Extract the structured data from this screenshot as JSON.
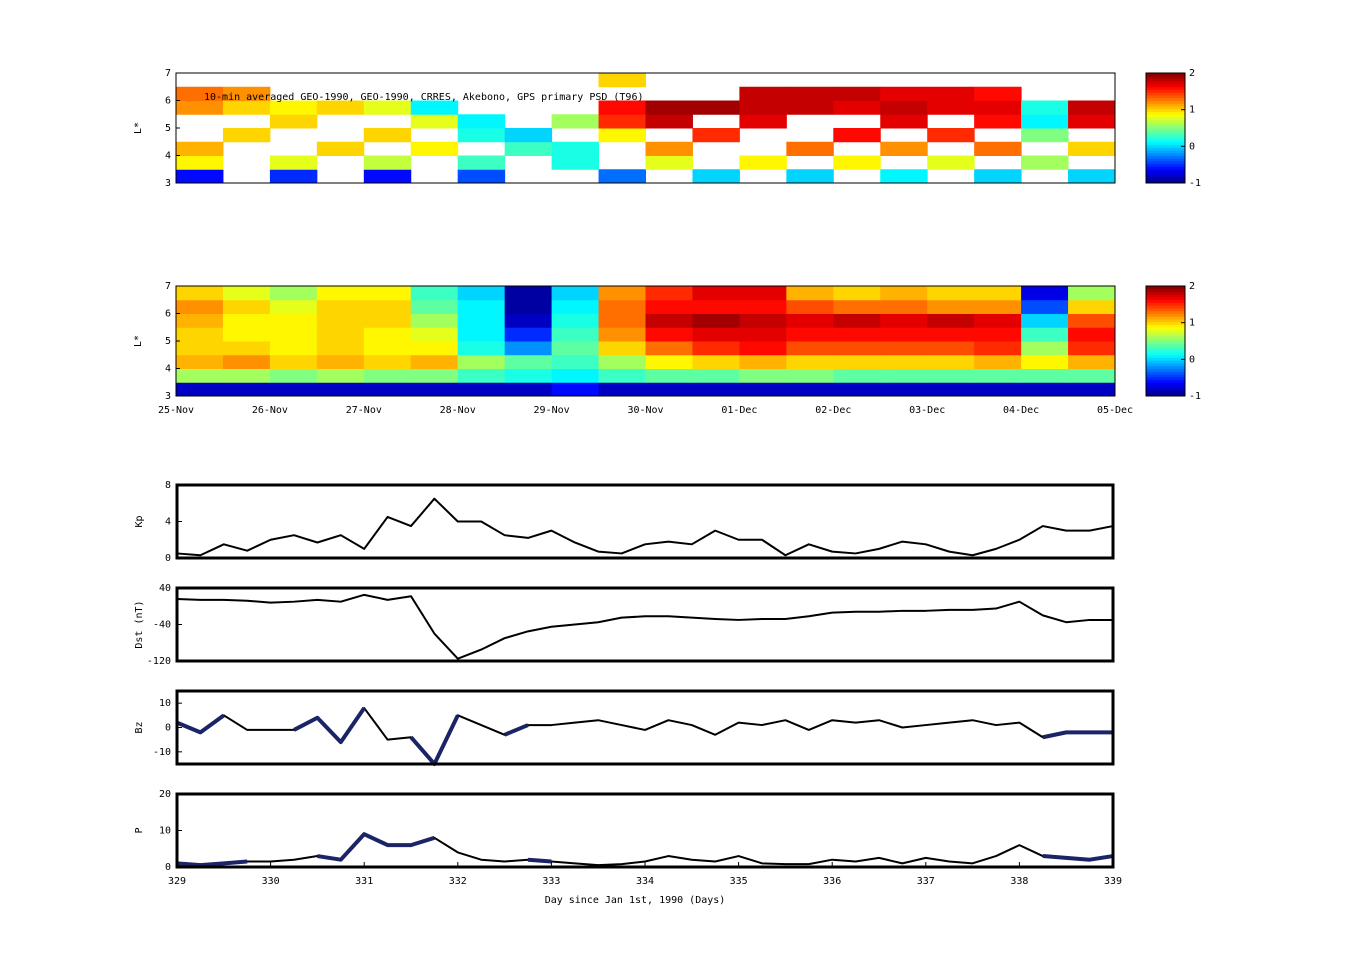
{
  "chart_data": [
    {
      "type": "heatmap",
      "annotation": "10-min averaged GEO-1990, GEO-1990, CRRES, Akebono, GPS  primary PSD (T96)",
      "ylabel": "L*",
      "ylim": [
        3,
        7
      ],
      "yticks": [
        3,
        4,
        5,
        6,
        7
      ],
      "clim": [
        -1,
        2
      ],
      "cticks": [
        -1,
        0,
        1,
        2
      ],
      "colormap": "jet",
      "values": [
        [
          -0.6,
          null,
          -0.5,
          null,
          -0.6,
          null,
          -0.4,
          null,
          null,
          -0.3,
          null,
          0.0,
          null,
          0.0,
          null,
          0.1,
          null,
          0.0,
          null,
          0.0
        ],
        [
          0.9,
          null,
          0.8,
          null,
          0.7,
          null,
          0.3,
          null,
          0.2,
          null,
          0.8,
          null,
          0.9,
          null,
          0.9,
          null,
          0.8,
          null,
          0.6,
          null
        ],
        [
          1.1,
          null,
          null,
          1.0,
          null,
          0.9,
          null,
          0.3,
          0.2,
          null,
          1.2,
          null,
          null,
          1.3,
          null,
          1.2,
          null,
          1.3,
          null,
          1.0
        ],
        [
          null,
          1.0,
          null,
          null,
          1.0,
          null,
          0.2,
          0.0,
          null,
          0.9,
          null,
          1.5,
          null,
          null,
          1.6,
          null,
          1.5,
          null,
          0.5,
          null
        ],
        [
          null,
          null,
          1.0,
          null,
          null,
          0.8,
          0.1,
          null,
          0.6,
          1.5,
          1.8,
          null,
          1.7,
          null,
          null,
          1.7,
          null,
          1.6,
          0.1,
          1.7
        ],
        [
          1.2,
          1.0,
          0.9,
          1.0,
          0.8,
          0.1,
          null,
          null,
          null,
          1.6,
          1.9,
          1.9,
          1.8,
          1.8,
          1.7,
          1.8,
          1.7,
          1.7,
          0.2,
          1.8
        ],
        [
          1.3,
          1.2,
          null,
          null,
          null,
          null,
          null,
          null,
          null,
          null,
          null,
          null,
          1.8,
          1.8,
          1.8,
          1.7,
          1.7,
          1.6,
          null,
          null
        ],
        [
          null,
          null,
          null,
          null,
          null,
          null,
          null,
          null,
          null,
          1.0,
          null,
          null,
          null,
          null,
          null,
          null,
          null,
          null,
          null,
          null
        ]
      ]
    },
    {
      "type": "heatmap",
      "ylabel": "L*",
      "ylim": [
        3,
        7
      ],
      "yticks": [
        3,
        4,
        5,
        6,
        7
      ],
      "clim": [
        -1,
        2
      ],
      "cticks": [
        -1,
        0,
        1,
        2
      ],
      "colormap": "jet",
      "x_labels": [
        "25-Nov",
        "26-Nov",
        "27-Nov",
        "28-Nov",
        "29-Nov",
        "30-Nov",
        "01-Dec",
        "02-Dec",
        "03-Dec",
        "04-Dec",
        "05-Dec"
      ],
      "values": [
        [
          -0.8,
          -0.8,
          -0.8,
          -0.8,
          -0.8,
          -0.8,
          -0.8,
          -0.8,
          -0.6,
          -0.8,
          -0.8,
          -0.8,
          -0.8,
          -0.8,
          -0.8,
          -0.8,
          -0.8,
          -0.8,
          -0.8,
          -0.8
        ],
        [
          0.6,
          0.6,
          0.5,
          0.6,
          0.5,
          0.5,
          0.3,
          0.2,
          0.1,
          0.3,
          0.4,
          0.4,
          0.5,
          0.5,
          0.4,
          0.4,
          0.4,
          0.4,
          0.4,
          0.4
        ],
        [
          1.1,
          1.2,
          1.0,
          1.1,
          1.0,
          1.1,
          0.6,
          0.4,
          0.3,
          0.6,
          0.9,
          1.0,
          1.1,
          1.0,
          1.0,
          1.0,
          1.0,
          1.1,
          0.9,
          1.1
        ],
        [
          1.0,
          1.0,
          0.9,
          1.0,
          0.9,
          0.9,
          0.2,
          -0.2,
          0.4,
          1.0,
          1.3,
          1.5,
          1.6,
          1.4,
          1.4,
          1.4,
          1.4,
          1.5,
          0.6,
          1.5
        ],
        [
          1.0,
          0.9,
          0.9,
          1.0,
          0.9,
          0.8,
          0.1,
          -0.5,
          0.3,
          1.2,
          1.6,
          1.7,
          1.7,
          1.6,
          1.6,
          1.6,
          1.6,
          1.6,
          0.3,
          1.6
        ],
        [
          1.1,
          0.9,
          0.9,
          1.0,
          1.0,
          0.6,
          0.1,
          -0.8,
          0.2,
          1.3,
          1.8,
          1.9,
          1.8,
          1.7,
          1.8,
          1.7,
          1.8,
          1.7,
          0.0,
          1.4
        ],
        [
          1.2,
          1.0,
          0.8,
          1.0,
          1.0,
          0.4,
          0.1,
          -0.9,
          0.1,
          1.3,
          1.6,
          1.6,
          1.6,
          1.4,
          1.3,
          1.3,
          1.2,
          1.2,
          -0.4,
          1.0
        ],
        [
          1.0,
          0.8,
          0.6,
          0.9,
          0.9,
          0.3,
          0.0,
          -0.9,
          0.0,
          1.2,
          1.5,
          1.7,
          1.7,
          1.1,
          1.0,
          1.1,
          1.0,
          1.0,
          -0.7,
          0.6
        ]
      ]
    },
    {
      "type": "line",
      "ylabel": "Kp",
      "xlim": [
        329,
        339
      ],
      "ylim": [
        0,
        8
      ],
      "yticks": [
        0,
        4,
        8
      ],
      "x": [
        329,
        329.25,
        329.5,
        329.75,
        330,
        330.25,
        330.5,
        330.75,
        331,
        331.25,
        331.5,
        331.75,
        332,
        332.25,
        332.5,
        332.75,
        333,
        333.25,
        333.5,
        333.75,
        334,
        334.25,
        334.5,
        334.75,
        335,
        335.25,
        335.5,
        335.75,
        336,
        336.25,
        336.5,
        336.75,
        337,
        337.25,
        337.5,
        337.75,
        338,
        338.25,
        338.5,
        338.75,
        339
      ],
      "series": [
        {
          "color": "#000000",
          "width": 2,
          "values": [
            0.5,
            0.3,
            1.5,
            0.8,
            2,
            2.5,
            1.7,
            2.5,
            1.0,
            4.5,
            3.5,
            6.5,
            4.0,
            4,
            2.5,
            2.2,
            3.0,
            1.7,
            0.7,
            0.5,
            1.5,
            1.8,
            1.5,
            3.0,
            2.0,
            2.0,
            0.3,
            1.5,
            0.7,
            0.5,
            1.0,
            1.8,
            1.5,
            0.7,
            0.3,
            1.0,
            2.0,
            3.5,
            3.0,
            3.0,
            3.5
          ]
        }
      ]
    },
    {
      "type": "line",
      "ylabel": "Dst (nT)",
      "xlim": [
        329,
        339
      ],
      "ylim": [
        -120,
        40
      ],
      "yticks": [
        -120,
        -40,
        40
      ],
      "x": [
        329,
        329.25,
        329.5,
        329.75,
        330,
        330.25,
        330.5,
        330.75,
        331,
        331.25,
        331.5,
        331.75,
        332,
        332.25,
        332.5,
        332.75,
        333,
        333.25,
        333.5,
        333.75,
        334,
        334.25,
        334.5,
        334.75,
        335,
        335.25,
        335.5,
        335.75,
        336,
        336.25,
        336.5,
        336.75,
        337,
        337.25,
        337.5,
        337.75,
        338,
        338.25,
        338.5,
        338.75,
        339
      ],
      "series": [
        {
          "color": "#000000",
          "width": 2,
          "values": [
            16,
            14,
            14,
            12,
            8,
            10,
            14,
            10,
            25,
            14,
            22,
            -60,
            -115,
            -95,
            -70,
            -55,
            -45,
            -40,
            -35,
            -25,
            -22,
            -22,
            -25,
            -28,
            -30,
            -28,
            -28,
            -22,
            -14,
            -12,
            -12,
            -10,
            -10,
            -8,
            -8,
            -5,
            10,
            -20,
            -35,
            -30,
            -30
          ]
        }
      ]
    },
    {
      "type": "line",
      "ylabel": "Bz",
      "xlim": [
        329,
        339
      ],
      "ylim": [
        -15,
        15
      ],
      "yticks": [
        -10,
        0,
        10
      ],
      "x": [
        329,
        329.25,
        329.5,
        329.75,
        330,
        330.25,
        330.5,
        330.75,
        331,
        331.25,
        331.5,
        331.75,
        332,
        332.25,
        332.5,
        332.75,
        333,
        333.25,
        333.5,
        333.75,
        334,
        334.25,
        334.5,
        334.75,
        335,
        335.25,
        335.5,
        335.75,
        336,
        336.25,
        336.5,
        336.75,
        337,
        337.25,
        337.5,
        337.75,
        338,
        338.25,
        338.5,
        338.75,
        339
      ],
      "series": [
        {
          "color": "#000000",
          "width": 2,
          "values": [
            2,
            -2,
            5,
            -1,
            -1,
            -1,
            4,
            -6,
            8,
            -5,
            -4,
            -15,
            5,
            1,
            -3,
            1,
            1,
            2,
            3,
            1,
            -1,
            3,
            1,
            -3,
            2,
            1,
            3,
            -1,
            3,
            2,
            3,
            0,
            1,
            2,
            3,
            1,
            2,
            -4,
            -2,
            -2,
            -2
          ]
        },
        {
          "color": "#1a2466",
          "width": 4,
          "values": [
            2,
            -2,
            5,
            null,
            null,
            -1,
            4,
            -6,
            8,
            null,
            -4,
            -15,
            5,
            null,
            -3,
            1,
            null,
            null,
            null,
            null,
            null,
            null,
            null,
            null,
            null,
            null,
            null,
            null,
            null,
            null,
            null,
            null,
            null,
            null,
            null,
            null,
            null,
            -4,
            -2,
            -2,
            -2
          ]
        }
      ]
    },
    {
      "type": "line",
      "ylabel": "P",
      "xlabel": "Day since Jan 1st, 1990 (Days)",
      "xlim": [
        329,
        339
      ],
      "ylim": [
        0,
        20
      ],
      "yticks": [
        0,
        10,
        20
      ],
      "xticks": [
        329,
        330,
        331,
        332,
        333,
        334,
        335,
        336,
        337,
        338,
        339
      ],
      "x": [
        329,
        329.25,
        329.5,
        329.75,
        330,
        330.25,
        330.5,
        330.75,
        331,
        331.25,
        331.5,
        331.75,
        332,
        332.25,
        332.5,
        332.75,
        333,
        333.25,
        333.5,
        333.75,
        334,
        334.25,
        334.5,
        334.75,
        335,
        335.25,
        335.5,
        335.75,
        336,
        336.25,
        336.5,
        336.75,
        337,
        337.25,
        337.5,
        337.75,
        338,
        338.25,
        338.5,
        338.75,
        339
      ],
      "series": [
        {
          "color": "#000000",
          "width": 2,
          "values": [
            1,
            0.5,
            1,
            1.5,
            1.5,
            2,
            3,
            2,
            9,
            6,
            6,
            8,
            4,
            2,
            1.5,
            2,
            1.5,
            1,
            0.5,
            0.8,
            1.5,
            3,
            2,
            1.5,
            3,
            1,
            0.8,
            0.8,
            2,
            1.5,
            2.5,
            1,
            2.5,
            1.5,
            1,
            3,
            6,
            3,
            2.5,
            2,
            3
          ]
        },
        {
          "color": "#1a2466",
          "width": 4,
          "values": [
            1,
            0.5,
            1,
            1.5,
            null,
            null,
            3,
            2,
            9,
            6,
            6,
            8,
            null,
            null,
            null,
            2,
            1.5,
            null,
            null,
            null,
            null,
            null,
            null,
            null,
            null,
            null,
            null,
            null,
            null,
            null,
            null,
            null,
            null,
            null,
            null,
            null,
            null,
            3,
            2.5,
            2,
            3
          ]
        }
      ]
    }
  ]
}
